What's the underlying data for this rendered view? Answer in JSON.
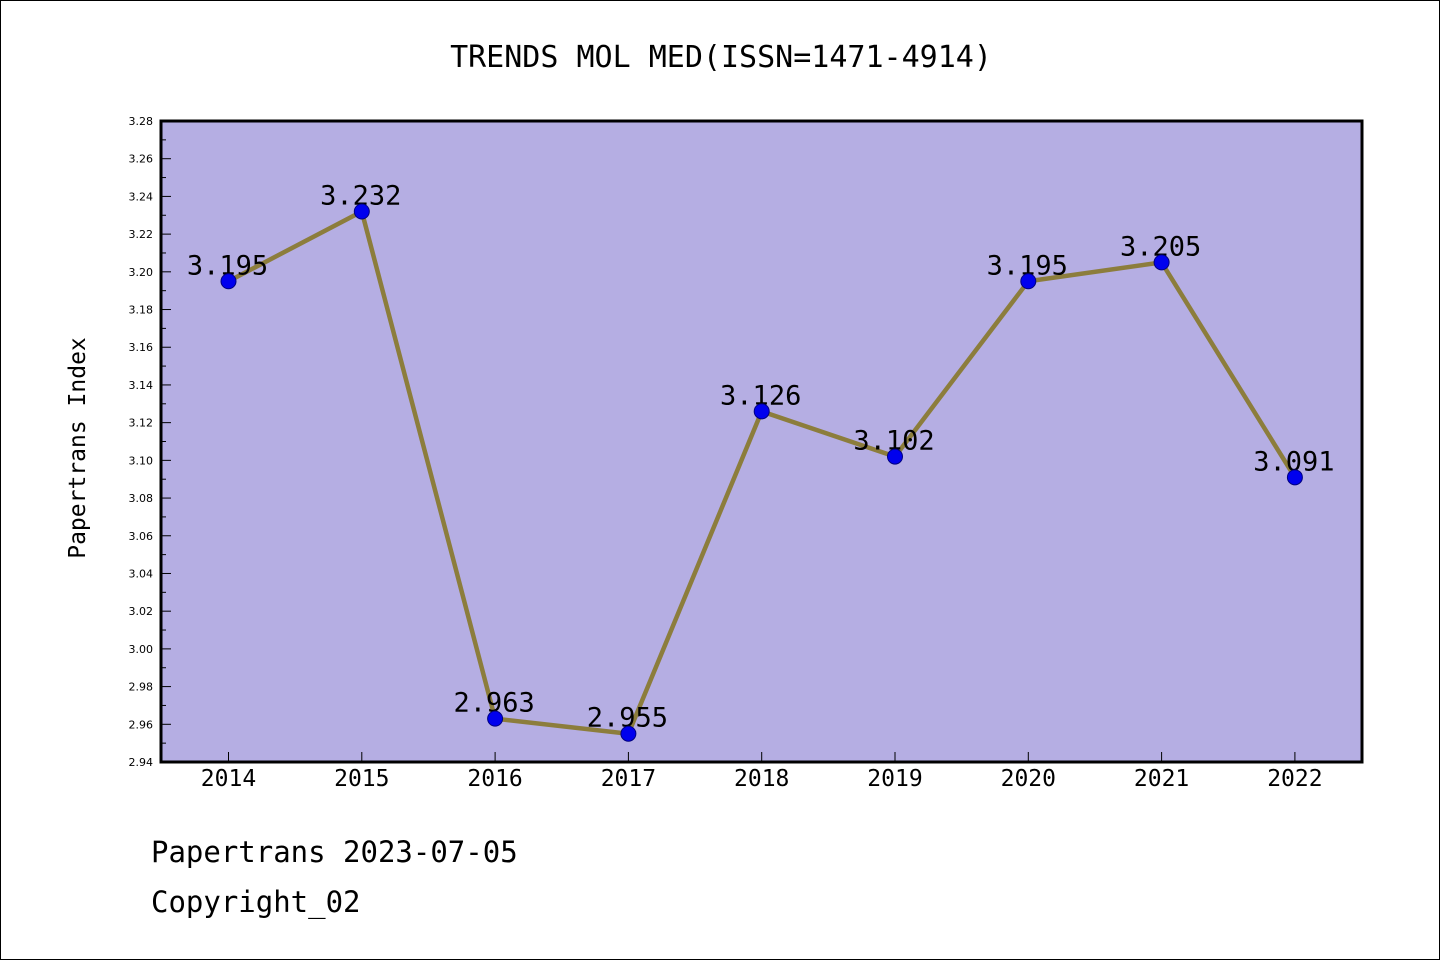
{
  "colors": {
    "plot_background": "#b5aee3",
    "line": "#8c7d3c",
    "marker": "#0000ee",
    "axis": "#000000"
  },
  "chart_data": {
    "type": "line",
    "title": "TRENDS MOL MED(ISSN=1471-4914)",
    "xlabel": "",
    "ylabel": "Papertrans Index",
    "categories": [
      "2014",
      "2015",
      "2016",
      "2017",
      "2018",
      "2019",
      "2020",
      "2021",
      "2022"
    ],
    "values": [
      3.195,
      3.232,
      2.963,
      2.955,
      3.126,
      3.102,
      3.195,
      3.205,
      3.091
    ],
    "data_labels": [
      "3.195",
      "3.232",
      "2.963",
      "2.955",
      "3.126",
      "3.102",
      "3.195",
      "3.205",
      "3.091"
    ],
    "ylim": [
      2.94,
      3.28
    ],
    "yticks": [
      "2.94",
      "2.96",
      "2.98",
      "3.00",
      "3.02",
      "3.04",
      "3.06",
      "3.08",
      "3.10",
      "3.12",
      "3.14",
      "3.16",
      "3.18",
      "3.20",
      "3.22",
      "3.24",
      "3.26",
      "3.28"
    ],
    "grid": false,
    "legend": "none"
  },
  "footer": {
    "line1": "Papertrans 2023-07-05",
    "line2": "Copyright_02"
  }
}
